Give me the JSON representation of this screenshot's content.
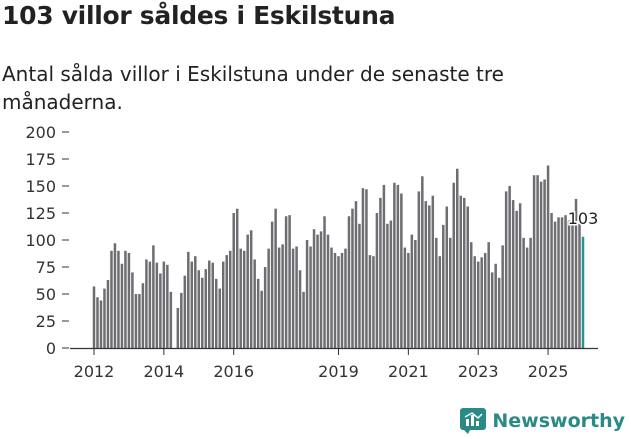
{
  "title": "103 villor såldes i Eskilstuna",
  "subtitle": "Antal sålda villor i Eskilstuna under de senaste tre månaderna.",
  "brand": {
    "name": "Newsworthy",
    "icon": "newsworthy-logo-icon"
  },
  "colors": {
    "bar": "#6e6d72",
    "highlight": "#23978f",
    "axis": "#333333",
    "brand": "#2a8a86"
  },
  "chart_data": {
    "type": "bar",
    "title": "103 villor såldes i Eskilstuna",
    "xlabel": "",
    "ylabel": "",
    "ylim": [
      0,
      200
    ],
    "yticks": [
      0,
      25,
      50,
      75,
      100,
      125,
      150,
      175,
      200
    ],
    "xticks": [
      {
        "label": "2012",
        "index": 0
      },
      {
        "label": "2014",
        "index": 20
      },
      {
        "label": "2016",
        "index": 40
      },
      {
        "label": "2019",
        "index": 70
      },
      {
        "label": "2021",
        "index": 90
      },
      {
        "label": "2023",
        "index": 110
      },
      {
        "label": "2025",
        "index": 130
      }
    ],
    "last_label": "103",
    "values": [
      57,
      47,
      44,
      55,
      63,
      90,
      97,
      90,
      78,
      90,
      88,
      70,
      50,
      50,
      60,
      82,
      80,
      95,
      79,
      69,
      80,
      77,
      52,
      0,
      37,
      51,
      67,
      89,
      80,
      85,
      72,
      65,
      73,
      81,
      79,
      64,
      55,
      80,
      86,
      90,
      125,
      129,
      92,
      90,
      105,
      109,
      82,
      64,
      53,
      75,
      92,
      117,
      129,
      93,
      96,
      122,
      123,
      92,
      94,
      72,
      52,
      100,
      94,
      110,
      105,
      108,
      122,
      105,
      93,
      88,
      85,
      88,
      92,
      122,
      129,
      136,
      115,
      148,
      147,
      86,
      85,
      125,
      139,
      151,
      115,
      118,
      153,
      151,
      143,
      93,
      88,
      105,
      100,
      145,
      159,
      136,
      132,
      141,
      102,
      85,
      114,
      131,
      102,
      153,
      166,
      141,
      139,
      131,
      98,
      85,
      80,
      84,
      88,
      98,
      70,
      78,
      65,
      95,
      145,
      150,
      137,
      127,
      134,
      102,
      93,
      102,
      160,
      160,
      154,
      156,
      169,
      125,
      117,
      121,
      121,
      123,
      118,
      118,
      138,
      115,
      103
    ],
    "highlight_last": true
  }
}
